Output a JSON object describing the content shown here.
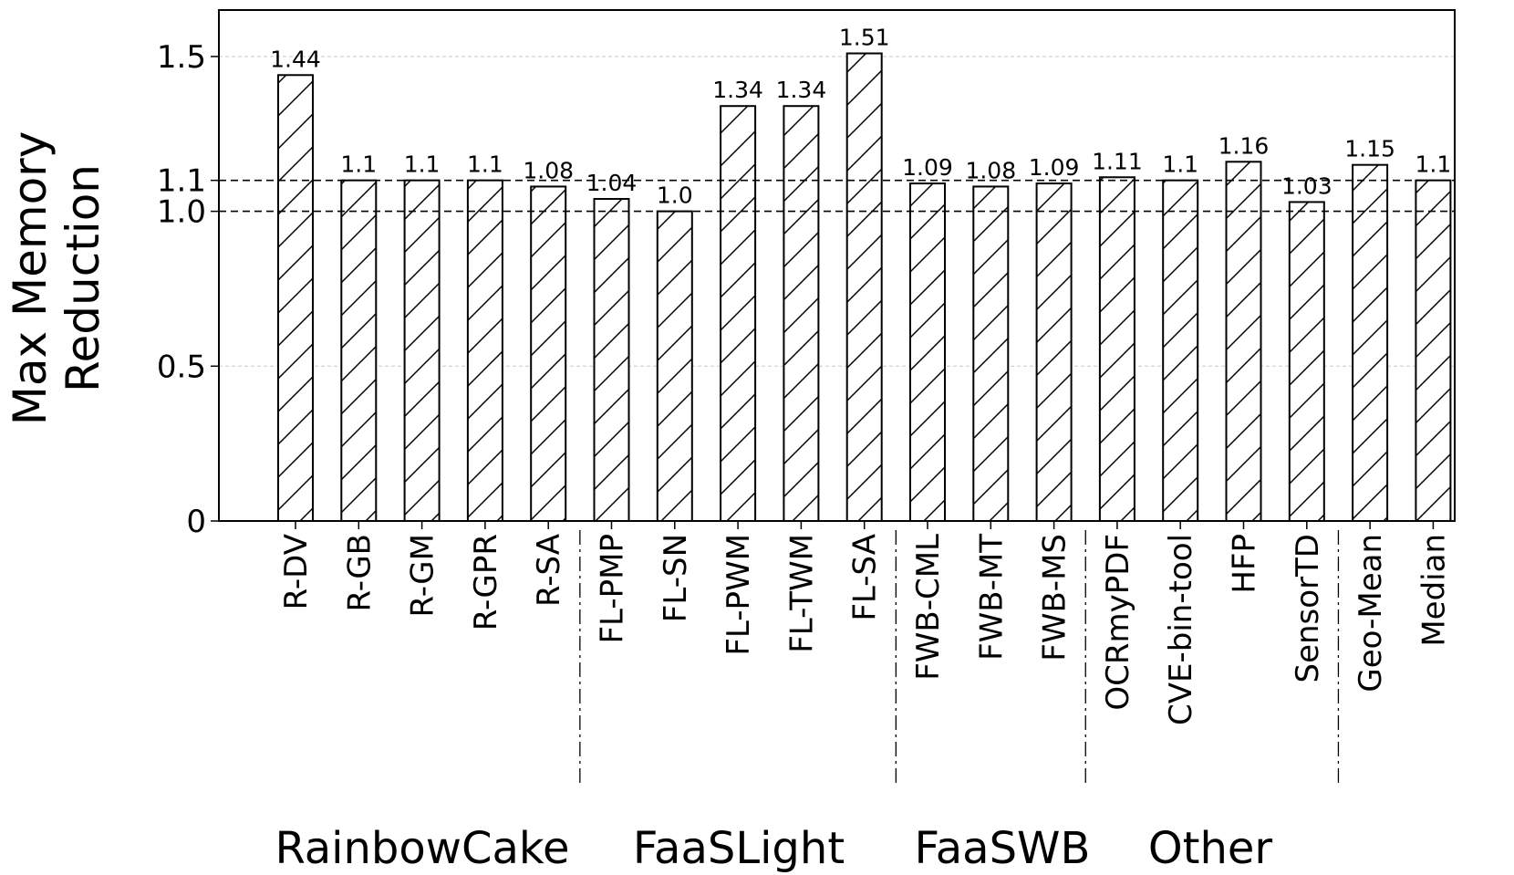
{
  "chart_data": {
    "type": "bar",
    "ylabel_lines": [
      "Max Memory",
      "Reduction"
    ],
    "categories": [
      "R-DV",
      "R-GB",
      "R-GM",
      "R-GPR",
      "R-SA",
      "FL-PMP",
      "FL-SN",
      "FL-PWM",
      "FL-TWM",
      "FL-SA",
      "FWB-CML",
      "FWB-MT",
      "FWB-MS",
      "OCRmyPDF",
      "CVE-bin-tool",
      "HFP",
      "SensorTD",
      "Geo-Mean",
      "Median"
    ],
    "values": [
      1.44,
      1.1,
      1.1,
      1.1,
      1.08,
      1.04,
      1.0,
      1.34,
      1.34,
      1.51,
      1.09,
      1.08,
      1.09,
      1.11,
      1.1,
      1.16,
      1.03,
      1.15,
      1.1
    ],
    "value_labels": [
      "1.44",
      "1.1",
      "1.1",
      "1.1",
      "1.08",
      "1.04",
      "1.0",
      "1.34",
      "1.34",
      "1.51",
      "1.09",
      "1.08",
      "1.09",
      "1.11",
      "1.1",
      "1.16",
      "1.03",
      "1.15",
      "1.1"
    ],
    "yticks": [
      0,
      0.5,
      1.0,
      1.1,
      1.5
    ],
    "ytick_labels": [
      "0",
      "0.5",
      "1.0",
      "1.1",
      "1.5"
    ],
    "ylim": [
      0,
      1.65
    ],
    "reference_lines": [
      1.0,
      1.1
    ],
    "grid": "horizontal dotted at 0.5 and 1.5",
    "bar_fill": "white with diagonal hatch",
    "groups": [
      {
        "name": "RainbowCake",
        "start": 0,
        "end": 4
      },
      {
        "name": "FaaSLight",
        "start": 5,
        "end": 9
      },
      {
        "name": "FaaSWB",
        "start": 10,
        "end": 12
      },
      {
        "name": "Other",
        "start": 13,
        "end": 16
      }
    ],
    "separators_after_index": [
      4,
      9,
      12,
      16
    ]
  }
}
